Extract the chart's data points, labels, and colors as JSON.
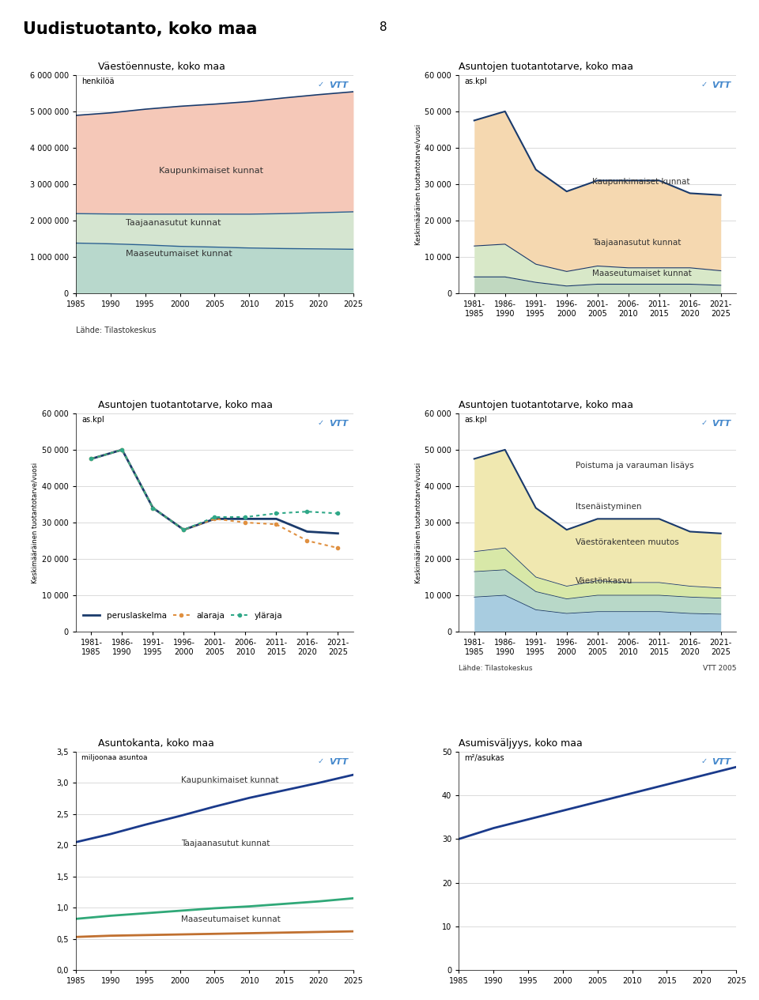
{
  "page_title": "Uudistuotanto, koko maa",
  "page_number": "8",
  "chart1": {
    "title": "Väestöennuste, koko maa",
    "ylabel_top": "henkilöä",
    "ylim": [
      0,
      6000000
    ],
    "yticks": [
      0,
      1000000,
      2000000,
      3000000,
      4000000,
      5000000,
      6000000
    ],
    "ytick_labels": [
      "0",
      "1 000 000",
      "2 000 000",
      "3 000 000",
      "4 000 000",
      "5 000 000",
      "6 000 000"
    ],
    "xlabel_note": "Lähde: Tilastokeskus",
    "years": [
      1985,
      1990,
      1995,
      2000,
      2005,
      2010,
      2015,
      2020,
      2025
    ],
    "maaseutu": [
      1380000,
      1360000,
      1330000,
      1290000,
      1270000,
      1245000,
      1230000,
      1220000,
      1210000
    ],
    "taajaan_cum": [
      2190000,
      2180000,
      2175000,
      2175000,
      2175000,
      2175000,
      2190000,
      2215000,
      2240000
    ],
    "kaupunki_cum": [
      4890000,
      4960000,
      5060000,
      5140000,
      5200000,
      5270000,
      5370000,
      5460000,
      5540000
    ],
    "color_maaseutu": "#b8d8cc",
    "color_taajaan": "#d5e5d0",
    "color_kaupunki": "#f5c8b8",
    "line_color_maaseutu": "#2a6090",
    "line_color_taajaan": "#2a6090",
    "line_color_kaupunki": "#1a3a6b",
    "label_maaseutu": "Maaseutumaiset kunnat",
    "label_taajaan": "Taajaanasutut kunnat",
    "label_kaupunki": "Kaupunkimaiset kunnat"
  },
  "chart2": {
    "title": "Asuntojen tuotantotarve, koko maa",
    "ylabel_top": "as.kpl",
    "ylabel_rot": "Keskimääräinen tuotantotarve/vuosi",
    "ylim": [
      0,
      60000
    ],
    "yticks": [
      0,
      10000,
      20000,
      30000,
      40000,
      50000,
      60000
    ],
    "ytick_labels": [
      "0",
      "10 000",
      "20 000",
      "30 000",
      "40 000",
      "50 000",
      "60 000"
    ],
    "xticklabels": [
      "1981-\n1985",
      "1986-\n1990",
      "1991-\n1995",
      "1996-\n2000",
      "2001-\n2005",
      "2006-\n2010",
      "2011-\n2015",
      "2016-\n2020",
      "2021-\n2025"
    ],
    "x": [
      0,
      1,
      2,
      3,
      4,
      5,
      6,
      7,
      8
    ],
    "maaseutu": [
      4500,
      4500,
      3000,
      2000,
      2500,
      2500,
      2500,
      2500,
      2200
    ],
    "taajaan_cum": [
      13000,
      13500,
      8000,
      6000,
      7500,
      7000,
      7000,
      7000,
      6200
    ],
    "kaupunki_cum": [
      47500,
      50000,
      34000,
      28000,
      31000,
      31000,
      31000,
      27500,
      27000
    ],
    "color_maaseutu": "#c0d8c0",
    "color_taajaan": "#d8e8c8",
    "color_kaupunki": "#f5d8b0",
    "line_color": "#1a3a6b",
    "label_maaseutu": "Maaseutumaiset kunnat",
    "label_taajaan": "Taajaanasutut kunnat",
    "label_kaupunki": "Kaupunkimaiset kunnat"
  },
  "chart3": {
    "title": "Asuntojen tuotantotarve, koko maa",
    "ylabel_top": "as.kpl",
    "ylabel_rot": "Keskimääräinen tuotantotarve/vuosi",
    "ylim": [
      0,
      60000
    ],
    "yticks": [
      0,
      10000,
      20000,
      30000,
      40000,
      50000,
      60000
    ],
    "ytick_labels": [
      "0",
      "10 000",
      "20 000",
      "30 000",
      "40 000",
      "50 000",
      "60 000"
    ],
    "xticklabels": [
      "1981-\n1985",
      "1986-\n1990",
      "1991-\n1995",
      "1996-\n2000",
      "2001-\n2005",
      "2006-\n2010",
      "2011-\n2015",
      "2016-\n2020",
      "2021-\n2025"
    ],
    "x": [
      0,
      1,
      2,
      3,
      4,
      5,
      6,
      7,
      8
    ],
    "peruslaskelma": [
      47500,
      50000,
      34000,
      28000,
      31000,
      31000,
      31000,
      27500,
      27000
    ],
    "alaraja": [
      47500,
      50000,
      34000,
      28000,
      31000,
      30000,
      29500,
      25000,
      23000
    ],
    "ylaraja": [
      47500,
      50000,
      34000,
      28000,
      31500,
      31500,
      32500,
      33000,
      32500
    ],
    "color_perus": "#1a3a6b",
    "color_alaraja": "#e09040",
    "color_ylaraja": "#30a888",
    "label_peruslaskelma": "peruslaskelma",
    "label_alaraja": "alaraja",
    "label_ylaraja": "yläraja"
  },
  "chart4": {
    "title": "Asuntojen tuotantotarve, koko maa",
    "ylabel_top": "as.kpl",
    "ylabel_rot": "Keskimääräinen tuotantotarve/vuosi",
    "ylim": [
      0,
      60000
    ],
    "yticks": [
      0,
      10000,
      20000,
      30000,
      40000,
      50000,
      60000
    ],
    "ytick_labels": [
      "0",
      "10 000",
      "20 000",
      "30 000",
      "40 000",
      "50 000",
      "60 000"
    ],
    "xticklabels": [
      "1981-\n1985",
      "1986-\n1990",
      "1991-\n1995",
      "1996-\n2000",
      "2001-\n2005",
      "2006-\n2010",
      "2011-\n2015",
      "2016-\n2020",
      "2021-\n2025"
    ],
    "x": [
      0,
      1,
      2,
      3,
      4,
      5,
      6,
      7,
      8
    ],
    "vaestokasvu": [
      9500,
      10000,
      6000,
      5000,
      5500,
      5500,
      5500,
      5000,
      4800
    ],
    "vaestorakenne_cum": [
      16500,
      17000,
      11000,
      9000,
      10000,
      10000,
      10000,
      9500,
      9200
    ],
    "itsenaistymin_cum": [
      22000,
      23000,
      15000,
      12500,
      14000,
      13500,
      13500,
      12500,
      12000
    ],
    "poistuma_cum": [
      47500,
      50000,
      34000,
      28000,
      31000,
      31000,
      31000,
      27500,
      27000
    ],
    "color_vaestokasvu": "#a8cce0",
    "color_vaestorakenne": "#b8d8c8",
    "color_itsenaistymin": "#d8e8a8",
    "color_poistuma": "#f0e8b0",
    "label_vaestokasvu": "Väestönkasvu",
    "label_vaestorakenne": "Väestörakenteen muutos",
    "label_itsenaistymin": "Itsenäistyminen",
    "label_poistuma": "Poistuma ja varauman lisäys",
    "line_color": "#1a3a6b",
    "note_left": "Lähde: Tilastokeskus",
    "note_right": "VTT 2005"
  },
  "chart5": {
    "title": "Asuntokanta, koko maa",
    "ylabel_top": "miljoonaa asuntoa",
    "ylim": [
      0,
      3.5
    ],
    "yticks": [
      0.0,
      0.5,
      1.0,
      1.5,
      2.0,
      2.5,
      3.0,
      3.5
    ],
    "ytick_labels": [
      "0,0",
      "0,5",
      "1,0",
      "1,5",
      "2,0",
      "2,5",
      "3,0",
      "3,5"
    ],
    "years": [
      1985,
      1990,
      1995,
      2000,
      2005,
      2010,
      2015,
      2020,
      2025
    ],
    "maaseutu": [
      0.53,
      0.55,
      0.56,
      0.57,
      0.58,
      0.59,
      0.6,
      0.61,
      0.62
    ],
    "taajaan": [
      0.82,
      0.87,
      0.91,
      0.95,
      0.99,
      1.02,
      1.06,
      1.1,
      1.15
    ],
    "kaupunki": [
      2.05,
      2.18,
      2.33,
      2.47,
      2.62,
      2.76,
      2.88,
      3.0,
      3.13
    ],
    "color_maaseutu": "#c07030",
    "color_taajaan": "#30a878",
    "color_kaupunki": "#1a3a8b",
    "label_maaseutu": "Maaseutumaiset kunnat",
    "label_taajaan": "Taajaanasutut kunnat",
    "label_kaupunki": "Kaupunkimaiset kunnat"
  },
  "chart6": {
    "title": "Asumisväljyys, koko maa",
    "ylabel_top": "m²/asukas",
    "ylim": [
      0,
      50
    ],
    "yticks": [
      0,
      10,
      20,
      30,
      40,
      50
    ],
    "ytick_labels": [
      "0",
      "10",
      "20",
      "30",
      "40",
      "50"
    ],
    "years": [
      1985,
      1990,
      1995,
      2000,
      2005,
      2010,
      2015,
      2020,
      2025
    ],
    "values": [
      30,
      32.5,
      34.5,
      36.5,
      38.5,
      40.5,
      42.5,
      44.5,
      46.5
    ],
    "color_line": "#1a3a8b"
  },
  "vtt_color": "#4488cc"
}
